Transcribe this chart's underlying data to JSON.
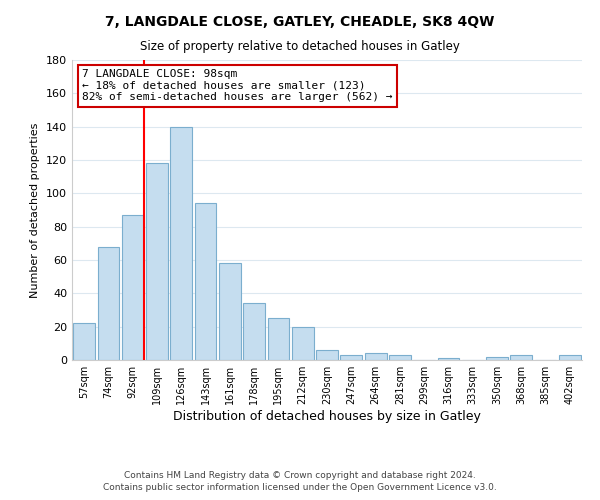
{
  "title": "7, LANGDALE CLOSE, GATLEY, CHEADLE, SK8 4QW",
  "subtitle": "Size of property relative to detached houses in Gatley",
  "xlabel": "Distribution of detached houses by size in Gatley",
  "ylabel": "Number of detached properties",
  "bar_labels": [
    "57sqm",
    "74sqm",
    "92sqm",
    "109sqm",
    "126sqm",
    "143sqm",
    "161sqm",
    "178sqm",
    "195sqm",
    "212sqm",
    "230sqm",
    "247sqm",
    "264sqm",
    "281sqm",
    "299sqm",
    "316sqm",
    "333sqm",
    "350sqm",
    "368sqm",
    "385sqm",
    "402sqm"
  ],
  "bar_values": [
    22,
    68,
    87,
    118,
    140,
    94,
    58,
    34,
    25,
    20,
    6,
    3,
    4,
    3,
    0,
    1,
    0,
    2,
    3,
    0,
    3
  ],
  "bar_color": "#c5ddef",
  "bar_edge_color": "#7baece",
  "red_line_index": 2,
  "annotation_text": "7 LANGDALE CLOSE: 98sqm\n← 18% of detached houses are smaller (123)\n82% of semi-detached houses are larger (562) →",
  "annotation_box_color": "#ffffff",
  "annotation_box_edge": "#cc0000",
  "ylim": [
    0,
    180
  ],
  "yticks": [
    0,
    20,
    40,
    60,
    80,
    100,
    120,
    140,
    160,
    180
  ],
  "footer_line1": "Contains HM Land Registry data © Crown copyright and database right 2024.",
  "footer_line2": "Contains public sector information licensed under the Open Government Licence v3.0.",
  "background_color": "#ffffff",
  "grid_color": "#dde8f0"
}
